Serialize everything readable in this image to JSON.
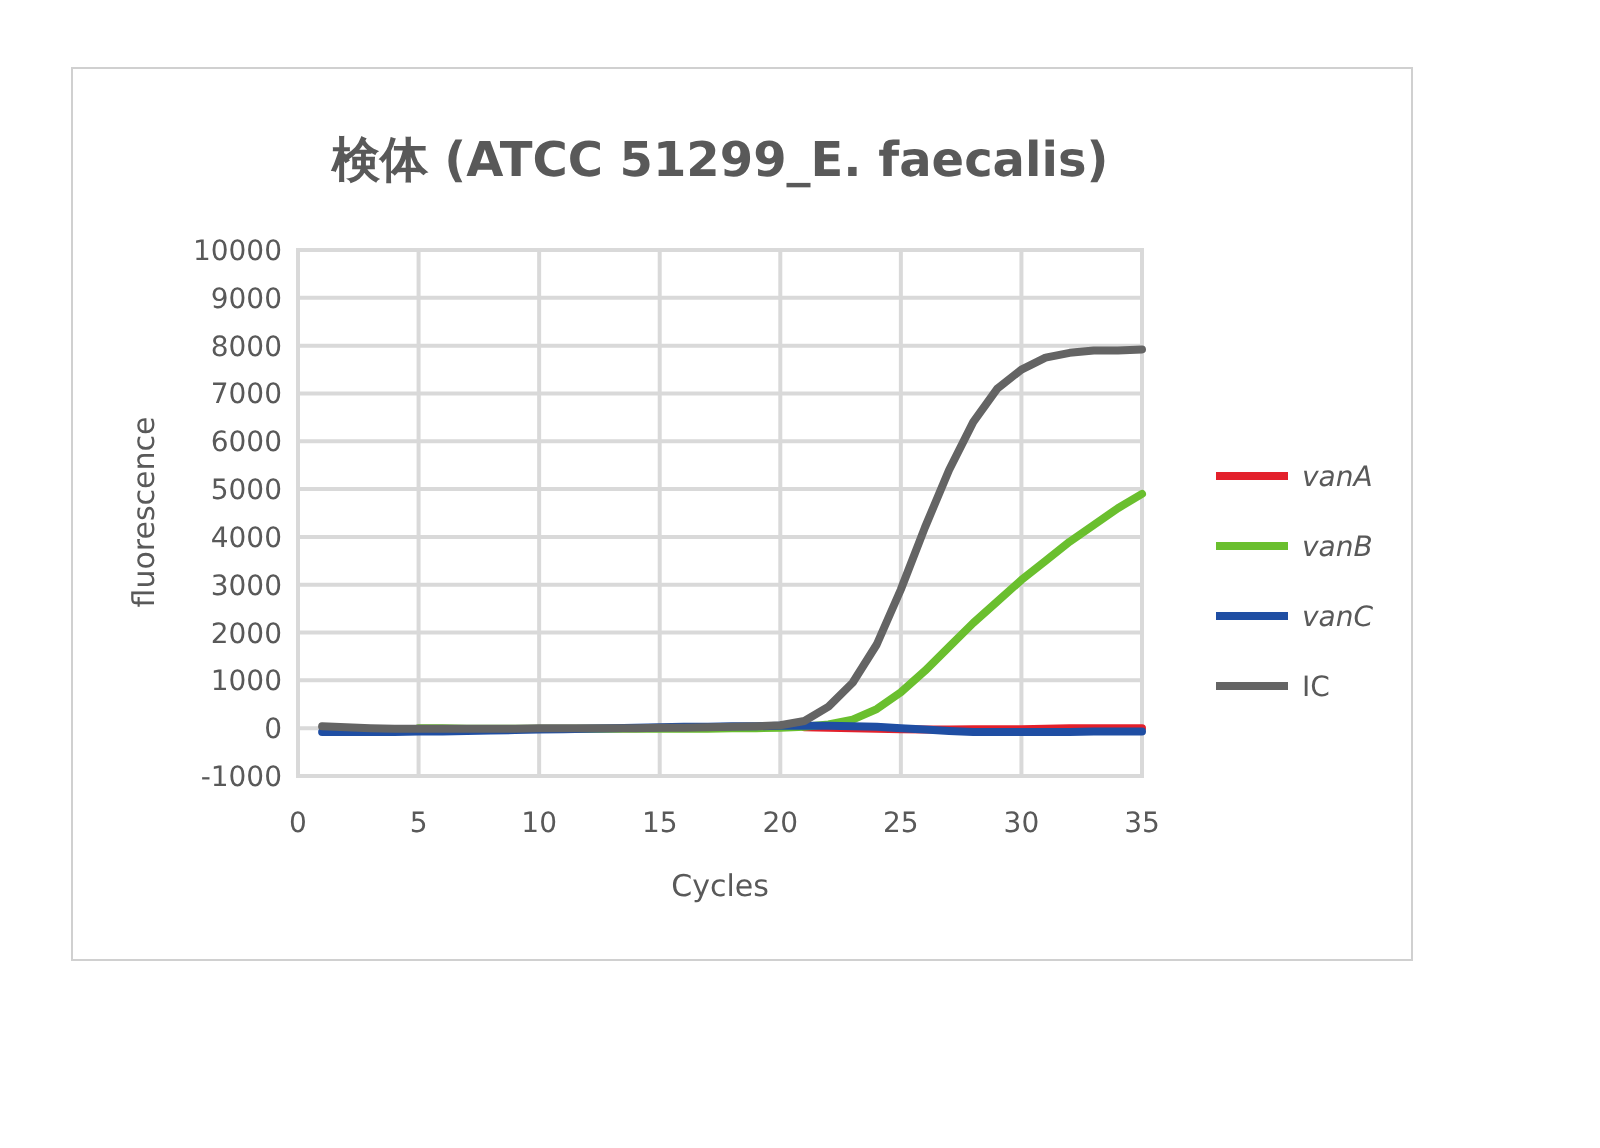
{
  "chart_data": {
    "type": "line",
    "title": "検体 (ATCC 51299_E. faecalis)",
    "xlabel": "Cycles",
    "ylabel": "fluorescence",
    "x": [
      1,
      2,
      3,
      4,
      5,
      6,
      7,
      8,
      9,
      10,
      11,
      12,
      13,
      14,
      15,
      16,
      17,
      18,
      19,
      20,
      21,
      22,
      23,
      24,
      25,
      26,
      27,
      28,
      29,
      30,
      31,
      32,
      33,
      34,
      35
    ],
    "series": [
      {
        "name": "vanA",
        "color": "#e3202b",
        "values": [
          null,
          null,
          null,
          null,
          null,
          null,
          null,
          null,
          null,
          null,
          null,
          null,
          null,
          null,
          null,
          null,
          null,
          null,
          null,
          null,
          20,
          10,
          0,
          -10,
          -20,
          -30,
          -30,
          -20,
          -20,
          -20,
          -10,
          0,
          0,
          0,
          0
        ]
      },
      {
        "name": "vanB",
        "color": "#6abf2e",
        "values": [
          null,
          null,
          null,
          null,
          0,
          0,
          -10,
          -10,
          -10,
          -10,
          -10,
          -10,
          -10,
          -10,
          -10,
          -10,
          -10,
          0,
          0,
          10,
          30,
          80,
          180,
          400,
          750,
          1200,
          1700,
          2200,
          2650,
          3100,
          3500,
          3900,
          4250,
          4600,
          4900
        ]
      },
      {
        "name": "vanC",
        "color": "#1f4ea3",
        "values": [
          -80,
          -80,
          -80,
          -80,
          -70,
          -70,
          -60,
          -50,
          -40,
          -30,
          -20,
          -10,
          0,
          10,
          20,
          30,
          30,
          40,
          40,
          50,
          50,
          50,
          40,
          30,
          0,
          -30,
          -60,
          -80,
          -80,
          -80,
          -80,
          -80,
          -70,
          -70,
          -70
        ]
      },
      {
        "name": "IC",
        "color": "#646464",
        "values": [
          40,
          20,
          0,
          -10,
          -10,
          -10,
          -10,
          -10,
          -10,
          0,
          0,
          0,
          0,
          0,
          10,
          10,
          20,
          30,
          40,
          60,
          150,
          450,
          950,
          1750,
          2900,
          4200,
          5400,
          6400,
          7100,
          7500,
          7750,
          7850,
          7900,
          7900,
          7920
        ]
      }
    ],
    "xlim": [
      0,
      35
    ],
    "xticks": [
      0,
      5,
      10,
      15,
      20,
      25,
      30,
      35
    ],
    "ylim": [
      -1000,
      10000
    ],
    "yticks": [
      -1000,
      0,
      1000,
      2000,
      3000,
      4000,
      5000,
      6000,
      7000,
      8000,
      9000,
      10000
    ],
    "grid": true,
    "legend": "right",
    "marker": "none",
    "line_style": "solid"
  }
}
